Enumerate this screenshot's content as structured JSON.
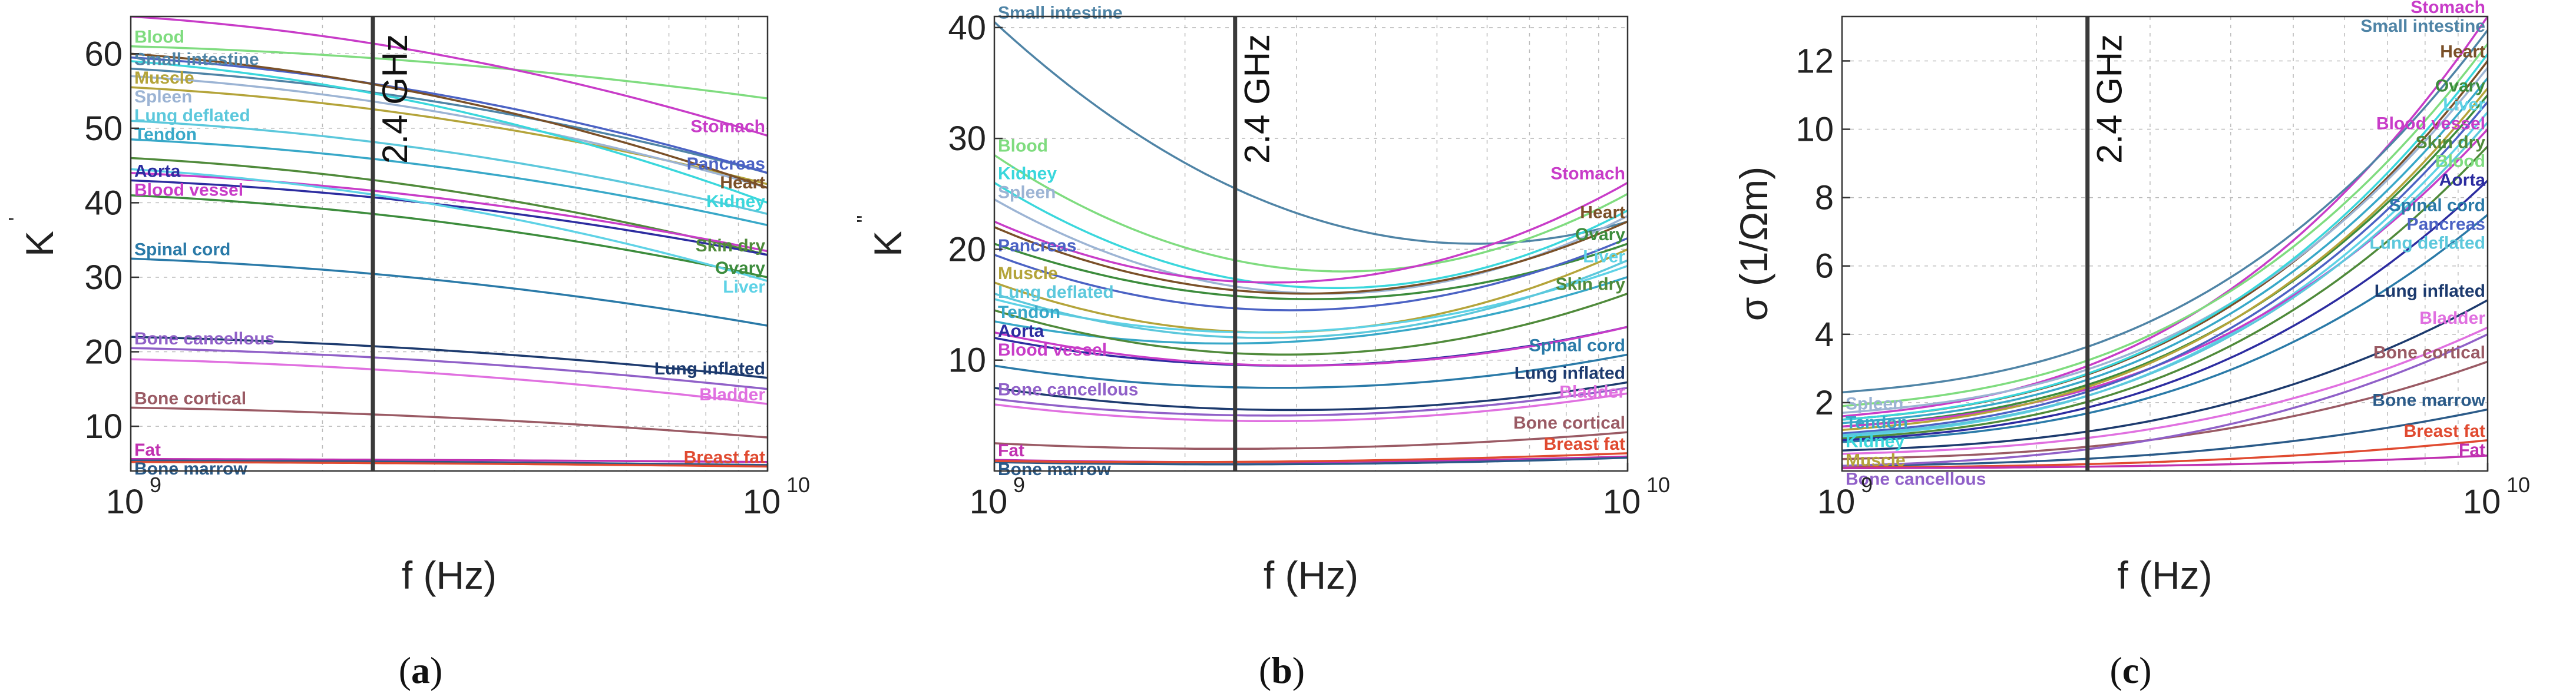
{
  "chart_data": [
    {
      "panel": "a",
      "type": "line",
      "x_scale": "log",
      "xlim": [
        1000000000.0,
        10000000000.0
      ],
      "ylim": [
        4,
        65
      ],
      "xticks": [
        {
          "label": "10",
          "exp": "9"
        },
        {
          "label": "10",
          "exp": "10"
        }
      ],
      "yticks": [
        10,
        20,
        30,
        40,
        50,
        60
      ],
      "xlabel": "f (Hz)",
      "ylabel": "K",
      "ylabel_sup": "'",
      "marker": {
        "x": 2400000000.0,
        "label": "2.4 GHz"
      },
      "caption": "a",
      "series": [
        {
          "name": "Blood",
          "color": "#7fdc7f",
          "values": [
            61,
            54
          ],
          "label_anchor": "start"
        },
        {
          "name": "Stomach",
          "color": "#c83cc8",
          "values": [
            65,
            49
          ],
          "label_anchor": "end"
        },
        {
          "name": "Small intestine",
          "color": "#4f84a6",
          "values": [
            58,
            44
          ],
          "label_anchor": "start"
        },
        {
          "name": "Pancreas",
          "color": "#4b62c4",
          "values": [
            59.5,
            44
          ],
          "label_anchor": "end"
        },
        {
          "name": "Muscle",
          "color": "#b4a43a",
          "values": [
            55.5,
            42.5
          ],
          "label_anchor": "start"
        },
        {
          "name": "Spleen",
          "color": "#9cb4d4",
          "values": [
            57,
            42
          ],
          "label_anchor": "start"
        },
        {
          "name": "Heart",
          "color": "#7a5028",
          "values": [
            60,
            42
          ],
          "label_anchor": "end"
        },
        {
          "name": "Kidney",
          "color": "#3ad7dc",
          "values": [
            59,
            40
          ],
          "label_anchor": "end"
        },
        {
          "name": "Lung deflated",
          "color": "#5cc8dc",
          "values": [
            51,
            38.5
          ],
          "label_anchor": "start"
        },
        {
          "name": "Tendon",
          "color": "#38a8c8",
          "values": [
            48.5,
            37
          ],
          "label_anchor": "start"
        },
        {
          "name": "Skin dry",
          "color": "#4f8a3a",
          "values": [
            46,
            33
          ],
          "label_anchor": "end"
        },
        {
          "name": "Aorta",
          "color": "#2c2ca0",
          "values": [
            43,
            33
          ],
          "label_anchor": "start"
        },
        {
          "name": "Blood vessel",
          "color": "#c83cc8",
          "values": [
            44,
            33.5
          ],
          "label_anchor": "start"
        },
        {
          "name": "Ovary",
          "color": "#3c8c3c",
          "values": [
            41,
            30
          ],
          "label_anchor": "end"
        },
        {
          "name": "Liver",
          "color": "#5ed2e6",
          "values": [
            44.5,
            29.5
          ],
          "label_anchor": "end"
        },
        {
          "name": "Spinal cord",
          "color": "#2a7aa8",
          "values": [
            32.5,
            23.5
          ],
          "label_anchor": "start"
        },
        {
          "name": "Lung inflated",
          "color": "#1c3a6e",
          "values": [
            22,
            16.5
          ],
          "label_anchor": "end"
        },
        {
          "name": "Bone cancellous",
          "color": "#9060c8",
          "values": [
            20.5,
            15
          ],
          "label_anchor": "start"
        },
        {
          "name": "Bladder",
          "color": "#e070e0",
          "values": [
            19,
            13
          ],
          "label_anchor": "end"
        },
        {
          "name": "Bone cortical",
          "color": "#9a5a64",
          "values": [
            12.5,
            8.5
          ],
          "label_anchor": "start"
        },
        {
          "name": "Fat",
          "color": "#c030b0",
          "values": [
            5.6,
            5.2
          ],
          "label_anchor": "start"
        },
        {
          "name": "Bone marrow",
          "color": "#2a5a88",
          "values": [
            5.4,
            4.8
          ],
          "label_anchor": "start"
        },
        {
          "name": "Breast fat",
          "color": "#e04a30",
          "values": [
            5.2,
            4.6
          ],
          "label_anchor": "end"
        }
      ]
    },
    {
      "panel": "b",
      "type": "line",
      "x_scale": "log",
      "xlim": [
        1000000000.0,
        10000000000.0
      ],
      "ylim": [
        0,
        41
      ],
      "xticks": [
        {
          "label": "10",
          "exp": "9"
        },
        {
          "label": "10",
          "exp": "10"
        }
      ],
      "yticks": [
        10,
        20,
        30,
        40
      ],
      "xlabel": "f (Hz)",
      "ylabel": "K",
      "ylabel_sup": "''",
      "marker": {
        "x": 2400000000.0,
        "label": "2.4 GHz"
      },
      "caption": "b",
      "series": [
        {
          "name": "Small intestine",
          "color": "#4f84a6",
          "values": [
            40.5,
            22.5
          ],
          "min": 20.5,
          "label_anchor": "start"
        },
        {
          "name": "Blood",
          "color": "#7fdc7f",
          "values": [
            28.5,
            25
          ],
          "min": 18,
          "label_anchor": "start"
        },
        {
          "name": "Kidney",
          "color": "#3ad7dc",
          "values": [
            26,
            23.5
          ],
          "min": 16.5,
          "label_anchor": "start"
        },
        {
          "name": "Spleen",
          "color": "#9cb4d4",
          "values": [
            24.5,
            23
          ],
          "min": 16,
          "label_anchor": "start"
        },
        {
          "name": "Stomach",
          "color": "#c83cc8",
          "values": [
            22.5,
            26
          ],
          "min": 17,
          "label_anchor": "end"
        },
        {
          "name": "Heart",
          "color": "#7a5028",
          "values": [
            22,
            22.5
          ],
          "min": 16,
          "label_anchor": "end"
        },
        {
          "name": "Muscle",
          "color": "#b4a43a",
          "values": [
            17,
            20
          ],
          "min": 12.5,
          "label_anchor": "start"
        },
        {
          "name": "Ovary",
          "color": "#3c8c3c",
          "values": [
            20.5,
            20.5
          ],
          "min": 15.5,
          "label_anchor": "end"
        },
        {
          "name": "Pancreas",
          "color": "#4b62c4",
          "values": [
            19.5,
            21
          ],
          "min": 14.5,
          "label_anchor": "start"
        },
        {
          "name": "Liver",
          "color": "#5ed2e6",
          "values": [
            15.5,
            18.5
          ],
          "min": 12.5,
          "label_anchor": "end"
        },
        {
          "name": "Lung deflated",
          "color": "#5cc8dc",
          "values": [
            16,
            19
          ],
          "min": 12,
          "label_anchor": "start"
        },
        {
          "name": "Tendon",
          "color": "#38a8c8",
          "values": [
            13.5,
            17.5
          ],
          "min": 11.5,
          "label_anchor": "start"
        },
        {
          "name": "Skin dry",
          "color": "#4f8a3a",
          "values": [
            14.5,
            16
          ],
          "min": 10.5,
          "label_anchor": "end"
        },
        {
          "name": "Aorta",
          "color": "#2c2ca0",
          "values": [
            12,
            13
          ],
          "min": 9.5,
          "label_anchor": "start"
        },
        {
          "name": "Blood vessel",
          "color": "#c83cc8",
          "values": [
            12.5,
            13
          ],
          "min": 9.5,
          "label_anchor": "start"
        },
        {
          "name": "Spinal cord",
          "color": "#2a7aa8",
          "values": [
            9.5,
            10.5
          ],
          "min": 7.5,
          "label_anchor": "end"
        },
        {
          "name": "Lung inflated",
          "color": "#1c3a6e",
          "values": [
            7.5,
            8
          ],
          "min": 5.5,
          "label_anchor": "end"
        },
        {
          "name": "Bone cancellous",
          "color": "#9060c8",
          "values": [
            6.5,
            7.5
          ],
          "min": 5,
          "label_anchor": "start"
        },
        {
          "name": "Bladder",
          "color": "#e070e0",
          "values": [
            6,
            7
          ],
          "min": 4.5,
          "label_anchor": "end"
        },
        {
          "name": "Bone cortical",
          "color": "#9a5a64",
          "values": [
            2.5,
            3.5
          ],
          "min": 2,
          "label_anchor": "end"
        },
        {
          "name": "Fat",
          "color": "#c030b0",
          "values": [
            1,
            1.3
          ],
          "min": 0.8,
          "label_anchor": "start"
        },
        {
          "name": "Bone marrow",
          "color": "#2a5a88",
          "values": [
            0.8,
            1.2
          ],
          "min": 0.6,
          "label_anchor": "start"
        },
        {
          "name": "Breast fat",
          "color": "#e04a30",
          "values": [
            0.9,
            1.6
          ],
          "min": 0.8,
          "label_anchor": "end"
        }
      ]
    },
    {
      "panel": "c",
      "type": "line",
      "x_scale": "log",
      "xlim": [
        1000000000.0,
        10000000000.0
      ],
      "ylim": [
        0,
        13.3
      ],
      "xticks": [
        {
          "label": "10",
          "exp": "9"
        },
        {
          "label": "10",
          "exp": "10"
        }
      ],
      "yticks": [
        2,
        4,
        6,
        8,
        10,
        12
      ],
      "xlabel": "f (Hz)",
      "ylabel": "σ (1/Ωm)",
      "marker": {
        "x": 2400000000.0,
        "label": "2.4 GHz"
      },
      "caption": "c",
      "series": [
        {
          "name": "Stomach",
          "color": "#c83cc8",
          "values": [
            1.6,
            13.3
          ],
          "label_anchor": "end"
        },
        {
          "name": "Heart",
          "color": "#7a5028",
          "values": [
            1.5,
            12.0
          ],
          "label_anchor": "end"
        },
        {
          "name": "Ovary",
          "color": "#3c8c3c",
          "values": [
            1.3,
            11.0
          ],
          "label_anchor": "end"
        },
        {
          "name": "Liver",
          "color": "#5ed2e6",
          "values": [
            1.0,
            10.5
          ],
          "label_anchor": "end"
        },
        {
          "name": "Blood vessel",
          "color": "#c83cc8",
          "values": [
            1.3,
            10.0
          ],
          "label_anchor": "end"
        },
        {
          "name": "Skin dry",
          "color": "#4f8a3a",
          "values": [
            0.95,
            9.5
          ],
          "label_anchor": "end"
        },
        {
          "name": "Blood",
          "color": "#7fdc7f",
          "values": [
            1.9,
            12.5
          ],
          "label_anchor": "end"
        },
        {
          "name": "Spinal cord",
          "color": "#2a7aa8",
          "values": [
            0.85,
            7.5
          ],
          "label_anchor": "end"
        },
        {
          "name": "Small intestine",
          "color": "#4f84a6",
          "values": [
            2.3,
            12.9
          ],
          "label_anchor": "end"
        },
        {
          "name": "Lung inflated",
          "color": "#1c3a6e",
          "values": [
            0.6,
            5.0
          ],
          "label_anchor": "end"
        },
        {
          "name": "Spleen",
          "color": "#9cb4d4",
          "values": [
            1.7,
            11.8
          ],
          "label_anchor": "start"
        },
        {
          "name": "Aorta",
          "color": "#2c2ca0",
          "values": [
            0.9,
            8.5
          ],
          "label_anchor": "end"
        },
        {
          "name": "Bladder",
          "color": "#e070e0",
          "values": [
            0.5,
            4.2
          ],
          "label_anchor": "end"
        },
        {
          "name": "Tendon",
          "color": "#38a8c8",
          "values": [
            1.4,
            11.5
          ],
          "label_anchor": "start"
        },
        {
          "name": "Kidney",
          "color": "#3ad7dc",
          "values": [
            1.5,
            12.2
          ],
          "label_anchor": "start"
        },
        {
          "name": "Muscle",
          "color": "#b4a43a",
          "values": [
            1.2,
            11.2
          ],
          "label_anchor": "start"
        },
        {
          "name": "Pancreas",
          "color": "#4b62c4",
          "values": [
            1.1,
            10.8
          ],
          "label_anchor": "end"
        },
        {
          "name": "Lung deflated",
          "color": "#5cc8dc",
          "values": [
            1.05,
            10.2
          ],
          "label_anchor": "end"
        },
        {
          "name": "Bone cortical",
          "color": "#9a5a64",
          "values": [
            0.35,
            3.2
          ],
          "label_anchor": "end"
        },
        {
          "name": "Bone marrow",
          "color": "#2a5a88",
          "values": [
            0.15,
            1.8
          ],
          "label_anchor": "end"
        },
        {
          "name": "Breast fat",
          "color": "#e04a30",
          "values": [
            0.1,
            0.9
          ],
          "label_anchor": "end"
        },
        {
          "name": "Fat",
          "color": "#c030b0",
          "values": [
            0.08,
            0.45
          ],
          "label_anchor": "end"
        },
        {
          "name": "Bone cancellous",
          "color": "#9060c8",
          "values": [
            0.15,
            4.0
          ],
          "label_anchor": "start"
        }
      ]
    }
  ]
}
